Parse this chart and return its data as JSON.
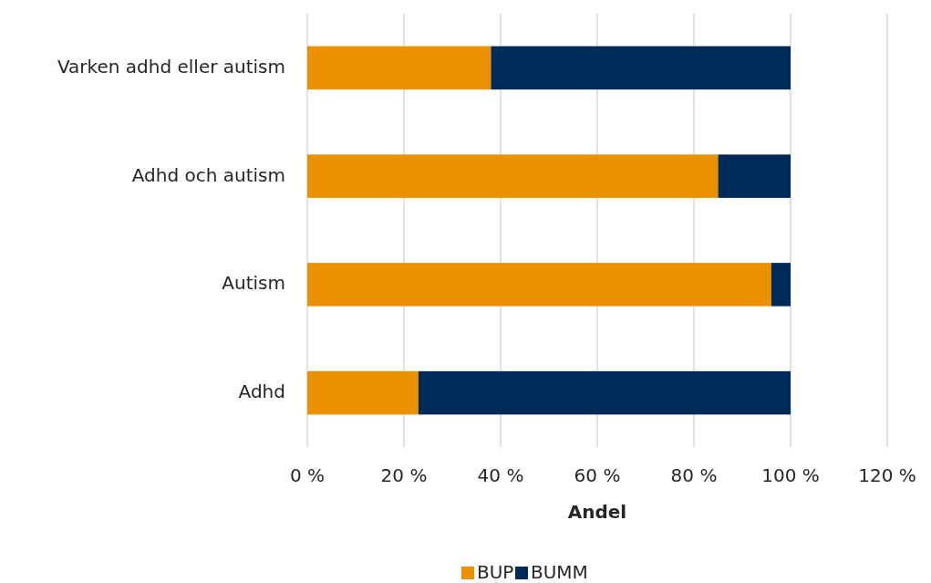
{
  "chart_data": {
    "type": "bar",
    "orientation": "horizontal",
    "stacked": true,
    "xlabel": "Andel",
    "categories": [
      "Varken adhd eller autism",
      "Adhd och autism",
      "Autism",
      "Adhd"
    ],
    "series": [
      {
        "name": "BUP",
        "color": "#eb9100",
        "values": [
          38,
          85,
          96,
          23
        ]
      },
      {
        "name": "BUMM",
        "color": "#002b59",
        "values": [
          62,
          15,
          4,
          77
        ]
      }
    ],
    "xlim": [
      0,
      120
    ],
    "xticks": [
      {
        "value": 0,
        "label": "0 %"
      },
      {
        "value": 20,
        "label": "20 %"
      },
      {
        "value": 40,
        "label": "40 %"
      },
      {
        "value": 60,
        "label": "60 %"
      },
      {
        "value": 80,
        "label": "80 %"
      },
      {
        "value": 100,
        "label": "100 %"
      },
      {
        "value": 120,
        "label": "120 %"
      }
    ],
    "grid": "x",
    "legend": "bottom"
  }
}
